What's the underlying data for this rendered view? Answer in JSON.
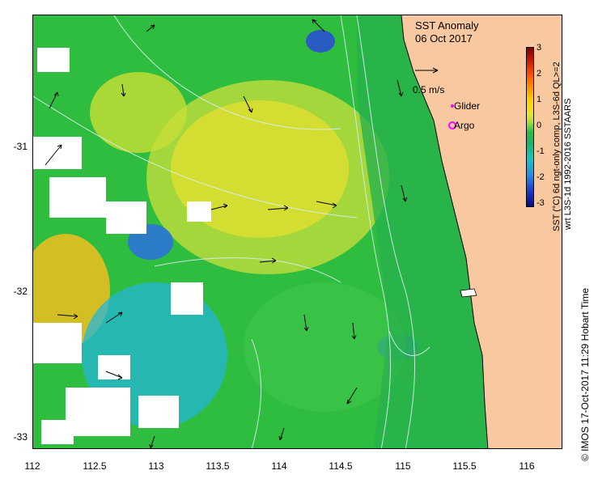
{
  "title": "SST Anomaly",
  "date": "06 Oct 2017",
  "legend": {
    "velocity_scale": "0.5 m/s",
    "glider": "Glider",
    "argo": "Argo"
  },
  "colorbar": {
    "label_line1": "SST (°C) 6d ngt-only comp, L3S-6d QL>=2",
    "label_line2": "wrt L3S-1d 1992-2016 SSTAARS",
    "ticks": [
      "3",
      "2",
      "1",
      "0",
      "-1",
      "-2",
      "-3"
    ],
    "range": [
      -3,
      3
    ]
  },
  "credit": "© IMOS 17-Oct-2017 11:29 Hobart Time",
  "axes": {
    "x_ticks": [
      "112",
      "112.5",
      "113",
      "113.5",
      "114",
      "114.5",
      "115",
      "115.5",
      "116"
    ],
    "y_ticks": [
      "-31",
      "-32",
      "-33"
    ],
    "x_range": [
      112,
      116.3
    ],
    "y_range": [
      -33.1,
      -30.1
    ]
  },
  "colors": {
    "land": "#f8c8a0",
    "neutral_sea": "#2fbd3f",
    "warm": "#e6e62e",
    "cold": "#18a8e0",
    "missing": "#ffffff",
    "glider_marker": "#ff00ff",
    "argo_marker": "#ff00ff"
  }
}
